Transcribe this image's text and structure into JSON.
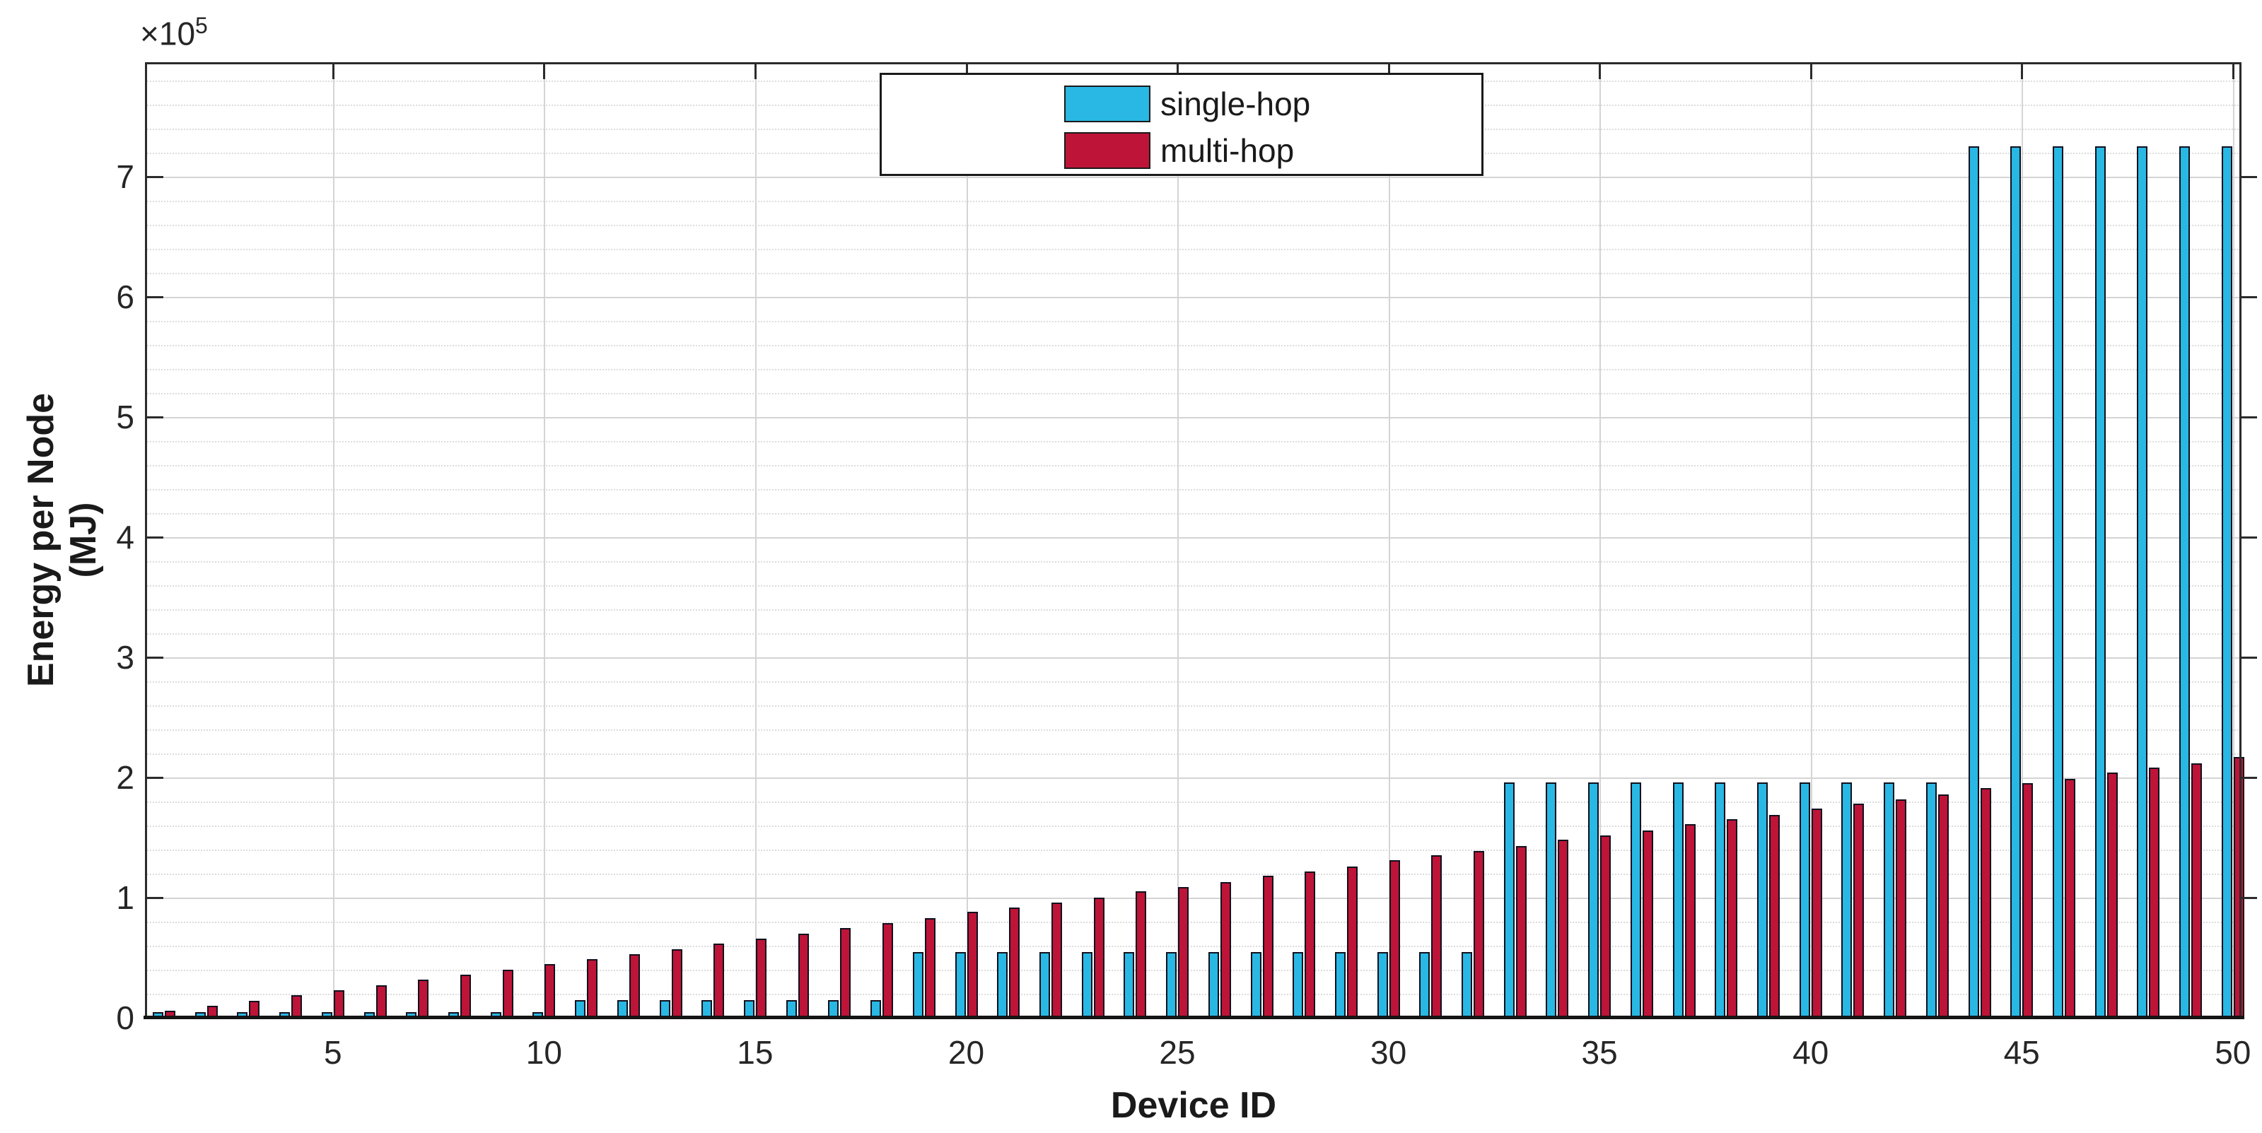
{
  "chart_data": {
    "type": "bar",
    "title": "",
    "xlabel": "Device ID",
    "ylabel_lines": {
      "line1": "Energy per Node",
      "line2": "(MJ)"
    },
    "y_axis_multiplier": {
      "base": "×10",
      "exponent": "5"
    },
    "x_ticks": [
      5,
      10,
      15,
      20,
      25,
      30,
      35,
      40,
      45,
      50
    ],
    "y_ticks": [
      0,
      1,
      2,
      3,
      4,
      5,
      6,
      7
    ],
    "ylim": [
      0,
      7.95
    ],
    "y_minor_step": 0.2,
    "grid": true,
    "legend_position": "top-center",
    "x": [
      1,
      2,
      3,
      4,
      5,
      6,
      7,
      8,
      9,
      10,
      11,
      12,
      13,
      14,
      15,
      16,
      17,
      18,
      19,
      20,
      21,
      22,
      23,
      24,
      25,
      26,
      27,
      28,
      29,
      30,
      31,
      32,
      33,
      34,
      35,
      36,
      37,
      38,
      39,
      40,
      41,
      42,
      43,
      44,
      45,
      46,
      47,
      48,
      49,
      50
    ],
    "series": [
      {
        "name": "single-hop",
        "color": "#29b8e4",
        "values": [
          0.05,
          0.05,
          0.05,
          0.05,
          0.05,
          0.05,
          0.05,
          0.05,
          0.05,
          0.05,
          0.15,
          0.15,
          0.15,
          0.15,
          0.15,
          0.15,
          0.15,
          0.15,
          0.55,
          0.55,
          0.55,
          0.55,
          0.55,
          0.55,
          0.55,
          0.55,
          0.55,
          0.55,
          0.55,
          0.55,
          0.55,
          0.55,
          1.96,
          1.96,
          1.96,
          1.96,
          1.96,
          1.96,
          1.96,
          1.96,
          1.96,
          1.96,
          1.96,
          7.25,
          7.25,
          7.25,
          7.25,
          7.25,
          7.25,
          7.25
        ]
      },
      {
        "name": "multi-hop",
        "color": "#be1438",
        "values": [
          0.06,
          0.1,
          0.14,
          0.19,
          0.23,
          0.27,
          0.32,
          0.36,
          0.4,
          0.45,
          0.49,
          0.53,
          0.57,
          0.62,
          0.66,
          0.7,
          0.75,
          0.79,
          0.83,
          0.88,
          0.92,
          0.96,
          1.0,
          1.05,
          1.09,
          1.13,
          1.18,
          1.22,
          1.26,
          1.31,
          1.35,
          1.39,
          1.43,
          1.48,
          1.52,
          1.56,
          1.61,
          1.65,
          1.69,
          1.74,
          1.78,
          1.82,
          1.86,
          1.91,
          1.95,
          1.99,
          2.04,
          2.08,
          2.12,
          2.17
        ]
      }
    ]
  }
}
